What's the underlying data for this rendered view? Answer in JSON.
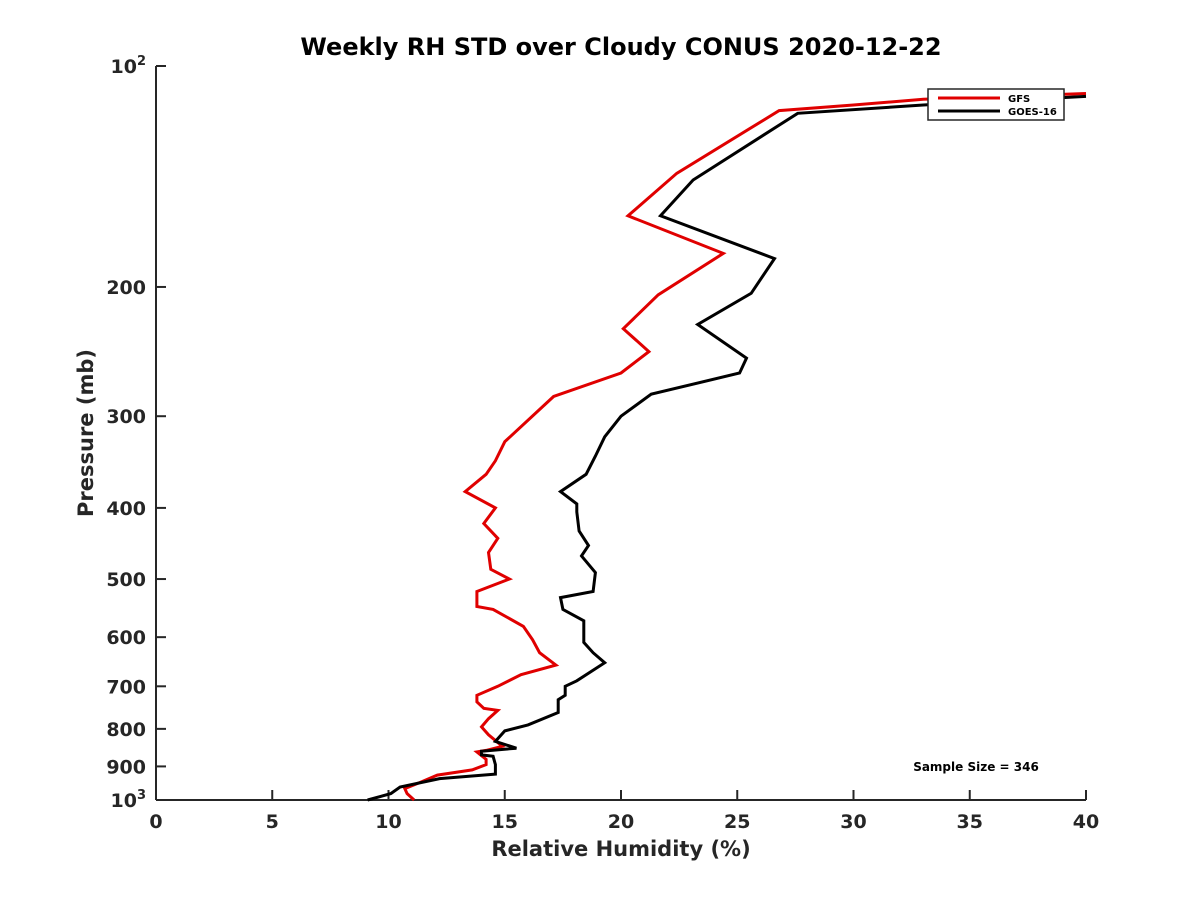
{
  "chart_data": {
    "type": "line",
    "title": "Weekly RH STD over Cloudy CONUS 2020-12-22",
    "xlabel": "Relative Humidity (%)",
    "ylabel": "Pressure (mb)",
    "xlim": [
      0,
      40
    ],
    "ylim": [
      100,
      1000
    ],
    "y_scale": "log",
    "y_reversed": true,
    "xticks": [
      0,
      5,
      10,
      15,
      20,
      25,
      30,
      35,
      40
    ],
    "yticks": [
      {
        "value": 100,
        "label": "10",
        "sup": "2"
      },
      {
        "value": 200,
        "label": "200",
        "sup": ""
      },
      {
        "value": 300,
        "label": "300",
        "sup": ""
      },
      {
        "value": 400,
        "label": "400",
        "sup": ""
      },
      {
        "value": 500,
        "label": "500",
        "sup": ""
      },
      {
        "value": 600,
        "label": "600",
        "sup": ""
      },
      {
        "value": 700,
        "label": "700",
        "sup": ""
      },
      {
        "value": 800,
        "label": "800",
        "sup": ""
      },
      {
        "value": 900,
        "label": "900",
        "sup": ""
      },
      {
        "value": 1000,
        "label": "10",
        "sup": "3"
      }
    ],
    "grid": false,
    "legend_position": "top-right",
    "annotation": "Sample Size = 346",
    "series": [
      {
        "name": "GFS",
        "color": "#e00000",
        "points": [
          [
            11.1,
            1000
          ],
          [
            10.8,
            980
          ],
          [
            10.7,
            965
          ],
          [
            11.4,
            945
          ],
          [
            12.1,
            925
          ],
          [
            13.6,
            910
          ],
          [
            14.2,
            895
          ],
          [
            14.2,
            880
          ],
          [
            13.8,
            860
          ],
          [
            14.2,
            856
          ],
          [
            14.9,
            845
          ],
          [
            14.3,
            815
          ],
          [
            14.0,
            795
          ],
          [
            14.3,
            775
          ],
          [
            14.7,
            755
          ],
          [
            14.1,
            750
          ],
          [
            13.8,
            735
          ],
          [
            13.8,
            720
          ],
          [
            14.7,
            700
          ],
          [
            15.7,
            675
          ],
          [
            17.2,
            655
          ],
          [
            16.5,
            630
          ],
          [
            16.2,
            605
          ],
          [
            15.8,
            580
          ],
          [
            14.5,
            550
          ],
          [
            13.8,
            545
          ],
          [
            13.8,
            520
          ],
          [
            15.2,
            500
          ],
          [
            14.4,
            485
          ],
          [
            14.3,
            460
          ],
          [
            14.7,
            440
          ],
          [
            14.1,
            420
          ],
          [
            14.6,
            400
          ],
          [
            13.3,
            380
          ],
          [
            14.2,
            360
          ],
          [
            14.6,
            345
          ],
          [
            15.0,
            325
          ],
          [
            17.1,
            282
          ],
          [
            20.0,
            262
          ],
          [
            21.2,
            245
          ],
          [
            20.1,
            228
          ],
          [
            21.6,
            205
          ],
          [
            24.4,
            180
          ],
          [
            20.3,
            160
          ],
          [
            22.4,
            140
          ],
          [
            26.8,
            115
          ],
          [
            30.0,
            113
          ],
          [
            33.0,
            111
          ],
          [
            40.0,
            109
          ]
        ]
      },
      {
        "name": "GOES-16",
        "color": "#000000",
        "points": [
          [
            9.1,
            1000
          ],
          [
            10.1,
            980
          ],
          [
            10.5,
            960
          ],
          [
            12.2,
            935
          ],
          [
            14.6,
            922
          ],
          [
            14.6,
            895
          ],
          [
            14.5,
            872
          ],
          [
            14.0,
            868
          ],
          [
            14.0,
            858
          ],
          [
            15.5,
            850
          ],
          [
            14.6,
            832
          ],
          [
            15.0,
            805
          ],
          [
            16.0,
            790
          ],
          [
            17.3,
            760
          ],
          [
            17.3,
            730
          ],
          [
            17.6,
            720
          ],
          [
            17.6,
            700
          ],
          [
            18.1,
            688
          ],
          [
            19.3,
            650
          ],
          [
            18.8,
            630
          ],
          [
            18.4,
            610
          ],
          [
            18.4,
            570
          ],
          [
            17.5,
            550
          ],
          [
            17.4,
            530
          ],
          [
            18.8,
            520
          ],
          [
            18.9,
            490
          ],
          [
            18.3,
            465
          ],
          [
            18.6,
            450
          ],
          [
            18.2,
            430
          ],
          [
            18.1,
            405
          ],
          [
            18.1,
            395
          ],
          [
            17.4,
            380
          ],
          [
            18.5,
            360
          ],
          [
            18.9,
            340
          ],
          [
            19.3,
            320
          ],
          [
            20.0,
            300
          ],
          [
            21.3,
            280
          ],
          [
            25.1,
            262
          ],
          [
            25.4,
            250
          ],
          [
            23.3,
            225
          ],
          [
            25.6,
            204
          ],
          [
            26.6,
            183
          ],
          [
            21.7,
            160
          ],
          [
            23.1,
            143
          ],
          [
            27.6,
            116
          ],
          [
            33.0,
            113
          ],
          [
            40.0,
            110
          ]
        ]
      }
    ]
  }
}
